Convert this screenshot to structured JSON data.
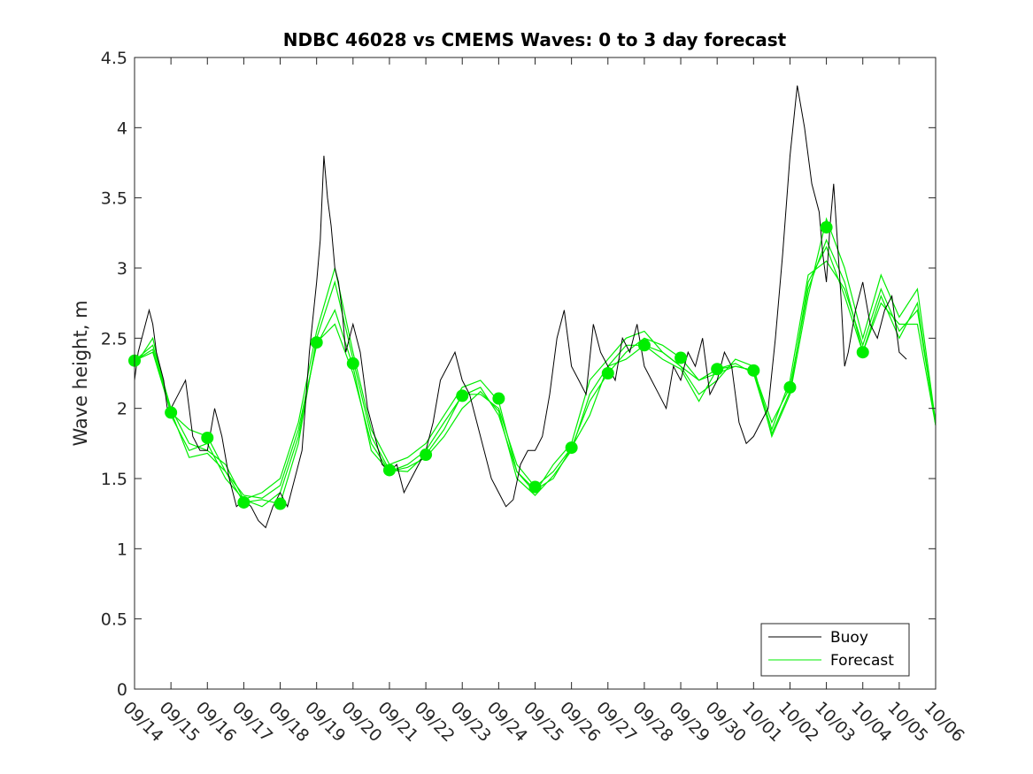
{
  "chart_data": {
    "type": "line",
    "title": "NDBC 46028 vs CMEMS Waves: 0 to 3 day forecast",
    "xlabel": "",
    "ylabel": "Wave height, m",
    "ylim": [
      0,
      4.5
    ],
    "xlim": [
      "09/14",
      "10/06"
    ],
    "yticks": [
      "0",
      "0.5",
      "1",
      "1.5",
      "2",
      "2.5",
      "3",
      "3.5",
      "4",
      "4.5"
    ],
    "xticks": [
      "09/14",
      "09/15",
      "09/16",
      "09/17",
      "09/18",
      "09/19",
      "09/20",
      "09/21",
      "09/22",
      "09/23",
      "09/24",
      "09/25",
      "09/26",
      "09/27",
      "09/28",
      "09/29",
      "09/30",
      "10/01",
      "10/02",
      "10/03",
      "10/04",
      "10/05",
      "10/06"
    ],
    "grid": false,
    "legend": {
      "placement": "bottom-right",
      "entries": [
        "Buoy",
        "Forecast"
      ]
    },
    "colors": {
      "buoy": "#000000",
      "forecast": "#00ee00",
      "axes": "#262626"
    },
    "buoy": {
      "name": "Buoy",
      "day": [
        0,
        0.1,
        0.2,
        0.3,
        0.4,
        0.5,
        0.6,
        0.7,
        0.8,
        0.9,
        1,
        1.2,
        1.4,
        1.6,
        1.8,
        2,
        2.2,
        2.4,
        2.6,
        2.8,
        3,
        3.2,
        3.4,
        3.6,
        3.8,
        4,
        4.2,
        4.4,
        4.6,
        4.8,
        5,
        5.1,
        5.2,
        5.3,
        5.4,
        5.5,
        5.6,
        5.7,
        5.8,
        6,
        6.2,
        6.4,
        6.6,
        6.8,
        7,
        7.2,
        7.4,
        7.6,
        7.8,
        8,
        8.2,
        8.4,
        8.6,
        8.8,
        9,
        9.2,
        9.4,
        9.6,
        9.8,
        10,
        10.2,
        10.4,
        10.6,
        10.8,
        11,
        11.2,
        11.4,
        11.6,
        11.8,
        12,
        12.2,
        12.4,
        12.6,
        12.8,
        13,
        13.2,
        13.4,
        13.6,
        13.8,
        14,
        14.2,
        14.4,
        14.6,
        14.8,
        15,
        15.2,
        15.4,
        15.6,
        15.8,
        16,
        16.2,
        16.4,
        16.6,
        16.8,
        17,
        17.2,
        17.4,
        17.6,
        17.8,
        18,
        18.2,
        18.4,
        18.6,
        18.8,
        18.9,
        19,
        19.1,
        19.2,
        19.3,
        19.4,
        19.5,
        19.6,
        19.8,
        20,
        20.2,
        20.4,
        20.6,
        20.8,
        21,
        21.2,
        21.4,
        21.6
      ],
      "values": [
        2.2,
        2.4,
        2.5,
        2.6,
        2.7,
        2.6,
        2.4,
        2.3,
        2.2,
        2.0,
        2.0,
        2.1,
        2.2,
        1.8,
        1.7,
        1.7,
        2.0,
        1.8,
        1.5,
        1.3,
        1.35,
        1.3,
        1.2,
        1.15,
        1.3,
        1.4,
        1.3,
        1.5,
        1.7,
        2.4,
        2.9,
        3.2,
        3.8,
        3.5,
        3.3,
        3.0,
        2.9,
        2.7,
        2.4,
        2.6,
        2.4,
        2.0,
        1.8,
        1.6,
        1.55,
        1.6,
        1.4,
        1.5,
        1.6,
        1.7,
        1.9,
        2.2,
        2.3,
        2.4,
        2.2,
        2.1,
        1.9,
        1.7,
        1.5,
        1.4,
        1.3,
        1.35,
        1.6,
        1.7,
        1.7,
        1.8,
        2.1,
        2.5,
        2.7,
        2.3,
        2.2,
        2.1,
        2.6,
        2.4,
        2.3,
        2.2,
        2.5,
        2.4,
        2.6,
        2.3,
        2.2,
        2.1,
        2.0,
        2.3,
        2.2,
        2.4,
        2.3,
        2.5,
        2.1,
        2.2,
        2.4,
        2.3,
        1.9,
        1.75,
        1.8,
        1.9,
        2.0,
        2.5,
        3.1,
        3.8,
        4.3,
        4.0,
        3.6,
        3.4,
        3.1,
        2.9,
        3.3,
        3.6,
        3.2,
        2.8,
        2.3,
        2.4,
        2.7,
        2.9,
        2.6,
        2.5,
        2.7,
        2.8,
        2.4,
        2.35
      ]
    },
    "forecast_markers": {
      "name": "Forecast",
      "day": [
        0,
        1,
        2,
        3,
        4,
        5,
        6,
        7,
        8,
        9,
        10,
        11,
        12,
        13,
        14,
        15,
        16,
        17,
        18,
        19,
        20
      ],
      "values": [
        2.34,
        1.97,
        1.79,
        1.33,
        1.32,
        2.47,
        2.32,
        1.56,
        1.67,
        2.09,
        2.07,
        1.44,
        1.72,
        2.25,
        2.45,
        2.36,
        2.28,
        2.27,
        2.15,
        3.29,
        2.4
      ]
    },
    "forecast_runs": [
      {
        "day": [
          0,
          0.5,
          1,
          1.5,
          2,
          2.5,
          3,
          3.5,
          4,
          4.5,
          5,
          5.5,
          6,
          6.5,
          7,
          7.5,
          8,
          8.5,
          9,
          9.5,
          10,
          10.5,
          11,
          11.5,
          12,
          12.5,
          13,
          13.5,
          14,
          14.5,
          15,
          15.5,
          16,
          16.5,
          17,
          17.5,
          18,
          18.5,
          19,
          19.5,
          20,
          20.5,
          21,
          21.5,
          22
        ],
        "values": [
          2.34,
          2.45,
          2.0,
          1.75,
          1.7,
          1.6,
          1.35,
          1.3,
          1.4,
          1.8,
          2.47,
          2.6,
          2.25,
          1.75,
          1.55,
          1.6,
          1.7,
          1.9,
          2.09,
          2.15,
          1.95,
          1.55,
          1.42,
          1.5,
          1.72,
          1.95,
          2.3,
          2.45,
          2.45,
          2.4,
          2.3,
          2.2,
          2.28,
          2.3,
          2.27,
          1.9,
          2.15,
          2.85,
          3.2,
          2.9,
          2.4,
          2.75,
          2.6,
          2.6,
          1.88
        ]
      },
      {
        "day": [
          0,
          0.5,
          1,
          1.5,
          2,
          2.5,
          3,
          3.5,
          4,
          4.5,
          5,
          5.5,
          6,
          6.5,
          7,
          7.5,
          8,
          8.5,
          9,
          9.5,
          10,
          10.5,
          11,
          11.5,
          12,
          12.5,
          13,
          13.5,
          14,
          14.5,
          15,
          15.5,
          16,
          16.5,
          17,
          17.5,
          18,
          18.5,
          19,
          19.5,
          20,
          20.5,
          21,
          21.5,
          22
        ],
        "values": [
          2.34,
          2.4,
          1.97,
          1.85,
          1.8,
          1.55,
          1.33,
          1.35,
          1.32,
          1.75,
          2.5,
          2.9,
          2.35,
          1.8,
          1.56,
          1.55,
          1.67,
          1.85,
          2.1,
          2.1,
          2.0,
          1.6,
          1.44,
          1.55,
          1.72,
          2.05,
          2.25,
          2.4,
          2.5,
          2.45,
          2.36,
          2.2,
          2.25,
          2.3,
          2.27,
          1.85,
          2.2,
          2.95,
          3.05,
          2.85,
          2.45,
          2.85,
          2.55,
          2.7,
          1.9
        ]
      },
      {
        "day": [
          0,
          0.5,
          1,
          1.5,
          2,
          2.5,
          3,
          3.5,
          4,
          4.5,
          5,
          5.5,
          6,
          6.5,
          7,
          7.5,
          8,
          8.5,
          9,
          9.5,
          10,
          10.5,
          11,
          11.5,
          12,
          12.5,
          13,
          13.5,
          14,
          14.5,
          15,
          15.5,
          16,
          16.5,
          17,
          17.5,
          18,
          18.5,
          19,
          19.5,
          20,
          20.5,
          21,
          21.5,
          22
        ],
        "values": [
          2.3,
          2.5,
          1.95,
          1.7,
          1.75,
          1.5,
          1.35,
          1.4,
          1.5,
          1.9,
          2.55,
          3.0,
          2.4,
          1.85,
          1.6,
          1.65,
          1.75,
          1.95,
          2.15,
          2.2,
          2.05,
          1.55,
          1.4,
          1.6,
          1.75,
          2.2,
          2.35,
          2.5,
          2.55,
          2.4,
          2.3,
          2.1,
          2.2,
          2.35,
          2.3,
          1.8,
          2.1,
          2.8,
          3.35,
          3.0,
          2.5,
          2.95,
          2.65,
          2.85,
          1.9
        ]
      },
      {
        "day": [
          0,
          0.5,
          1,
          1.5,
          2,
          2.5,
          3,
          3.5,
          4,
          4.5,
          5,
          5.5,
          6,
          6.5,
          7,
          7.5,
          8,
          8.5,
          9,
          9.5,
          10,
          10.5,
          11,
          11.5,
          12,
          12.5,
          13,
          13.5,
          14,
          14.5,
          15,
          15.5,
          16,
          16.5,
          17,
          17.5,
          18,
          18.5,
          19,
          19.5,
          20,
          20.5,
          21,
          21.5,
          22
        ],
        "values": [
          2.34,
          2.42,
          1.98,
          1.65,
          1.68,
          1.55,
          1.38,
          1.36,
          1.45,
          1.85,
          2.45,
          2.7,
          2.3,
          1.7,
          1.55,
          1.58,
          1.65,
          1.8,
          2.0,
          2.12,
          1.98,
          1.5,
          1.38,
          1.52,
          1.7,
          2.1,
          2.3,
          2.35,
          2.45,
          2.35,
          2.28,
          2.05,
          2.28,
          2.32,
          2.25,
          1.82,
          2.12,
          2.9,
          3.15,
          2.8,
          2.4,
          2.8,
          2.5,
          2.75,
          1.88
        ]
      }
    ]
  }
}
